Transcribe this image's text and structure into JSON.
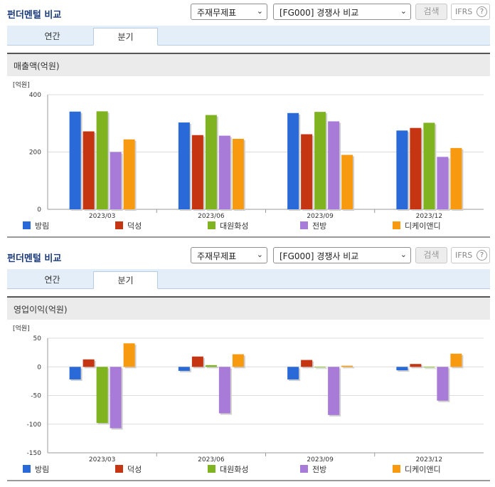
{
  "title": "펀더멘털 비교",
  "filter_1": "주재무제표",
  "filter_2": "[FG000] 경쟁사 비교",
  "search_label": "검색",
  "ifrs_label": "IFRS",
  "help_glyph": "?",
  "tabs": [
    "연간",
    "분기"
  ],
  "active_tab": "분기",
  "colors": {
    "series": [
      "#2a6ad8",
      "#c53512",
      "#7fb31f",
      "#a87bd8",
      "#f79a10"
    ],
    "header_title": "#1a3a7a",
    "tab_bar": "#e3eef8"
  },
  "chart_data": [
    {
      "type": "bar",
      "section_label": "매출액(억원)",
      "unit": "[억원]",
      "categories": [
        "2023/03",
        "2023/06",
        "2023/09",
        "2023/12"
      ],
      "yticks": [
        0,
        200,
        400
      ],
      "ylim": [
        0,
        400
      ],
      "grid": true,
      "legend": "bottom",
      "series": [
        {
          "name": "방림",
          "values": [
            341,
            303,
            336,
            275
          ]
        },
        {
          "name": "덕성",
          "values": [
            272,
            259,
            262,
            284
          ]
        },
        {
          "name": "대원화성",
          "values": [
            342,
            329,
            340,
            302
          ]
        },
        {
          "name": "전방",
          "values": [
            200,
            257,
            307,
            183
          ]
        },
        {
          "name": "디케이앤디",
          "values": [
            244,
            246,
            190,
            214
          ]
        }
      ]
    },
    {
      "type": "bar",
      "section_label": "영업이익(억원)",
      "unit": "[억원]",
      "categories": [
        "2023/03",
        "2023/06",
        "2023/09",
        "2023/12"
      ],
      "yticks": [
        50,
        0,
        -50,
        -100,
        -150
      ],
      "ylim": [
        -150,
        50
      ],
      "grid": true,
      "legend": "bottom",
      "series": [
        {
          "name": "방림",
          "values": [
            -22,
            -7,
            -22,
            -6
          ]
        },
        {
          "name": "덕성",
          "values": [
            13,
            18,
            12,
            5
          ]
        },
        {
          "name": "대원화성",
          "values": [
            -98,
            3,
            0,
            0
          ]
        },
        {
          "name": "전방",
          "values": [
            -107,
            -81,
            -84,
            -59
          ]
        },
        {
          "name": "디케이앤디",
          "values": [
            41,
            22,
            2,
            23
          ]
        }
      ]
    }
  ]
}
